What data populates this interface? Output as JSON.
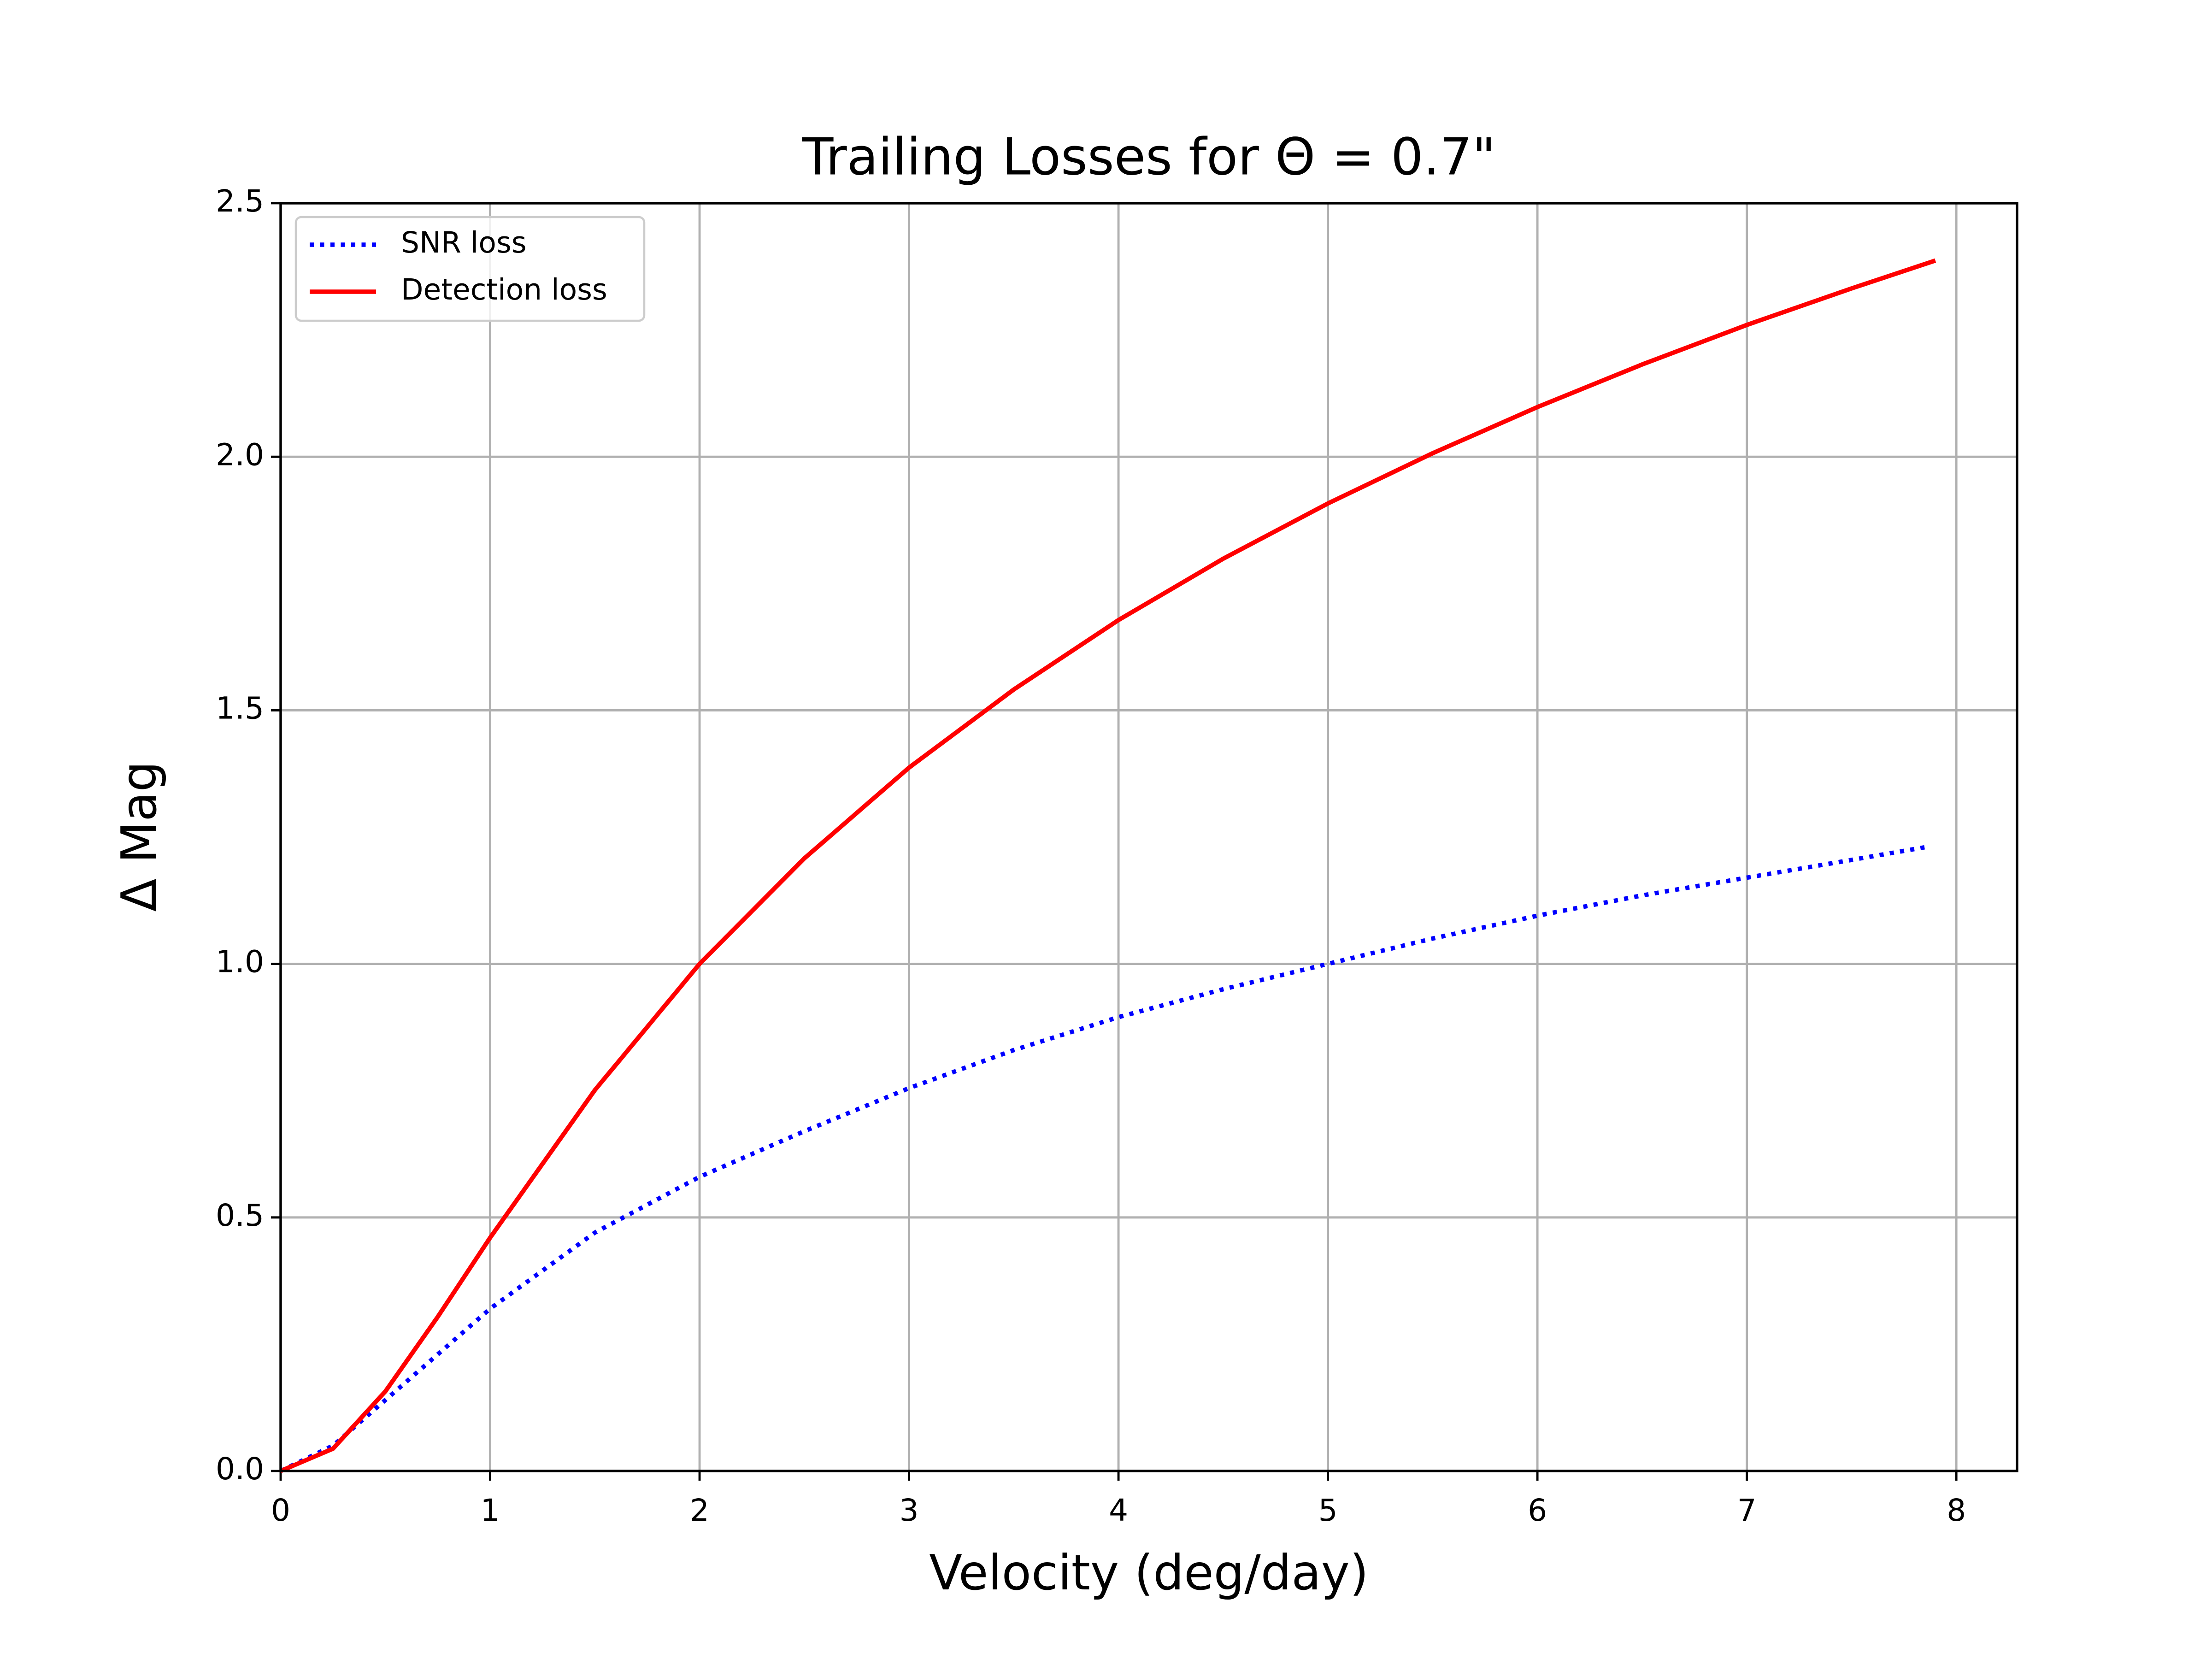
{
  "chart_data": {
    "type": "line",
    "title": "Trailing Losses for Θ = 0.7\"",
    "x_label": "Velocity (deg/day)",
    "y_label": "Δ Mag",
    "xlim": [
      0,
      8.29
    ],
    "ylim": [
      0,
      2.5
    ],
    "xticks": [
      0,
      1,
      2,
      3,
      4,
      5,
      6,
      7,
      8
    ],
    "yticks": [
      {
        "value": 0,
        "label": "0.0"
      },
      {
        "value": 0.5,
        "label": "0.5"
      },
      {
        "value": 1,
        "label": "1.0"
      },
      {
        "value": 1.5,
        "label": "1.5"
      },
      {
        "value": 2,
        "label": "2.0"
      },
      {
        "value": 2.5,
        "label": "2.5"
      }
    ],
    "grid": true,
    "legend": "upper left",
    "series": [
      {
        "name": "SNR loss",
        "color": "#0000ff",
        "style": "dotted",
        "x": [
          0,
          0.25,
          0.5,
          0.75,
          1,
          1.5,
          2,
          2.5,
          3,
          3.5,
          4,
          4.5,
          5,
          5.5,
          6,
          6.5,
          7,
          7.5,
          7.85
        ],
        "values": [
          0,
          0.05,
          0.14,
          0.23,
          0.32,
          0.47,
          0.58,
          0.67,
          0.755,
          0.83,
          0.895,
          0.95,
          1.0,
          1.05,
          1.095,
          1.135,
          1.17,
          1.205,
          1.23
        ]
      },
      {
        "name": "Detection loss",
        "color": "#ff0000",
        "style": "solid",
        "x": [
          0,
          0.25,
          0.5,
          0.75,
          1,
          1.5,
          2,
          2.5,
          3,
          3.5,
          4,
          4.5,
          5,
          5.5,
          6,
          6.5,
          7,
          7.5,
          7.9
        ],
        "values": [
          0,
          0.044,
          0.157,
          0.304,
          0.46,
          0.751,
          1.0,
          1.208,
          1.387,
          1.541,
          1.678,
          1.799,
          1.908,
          2.007,
          2.098,
          2.182,
          2.26,
          2.332,
          2.387
        ]
      }
    ]
  }
}
